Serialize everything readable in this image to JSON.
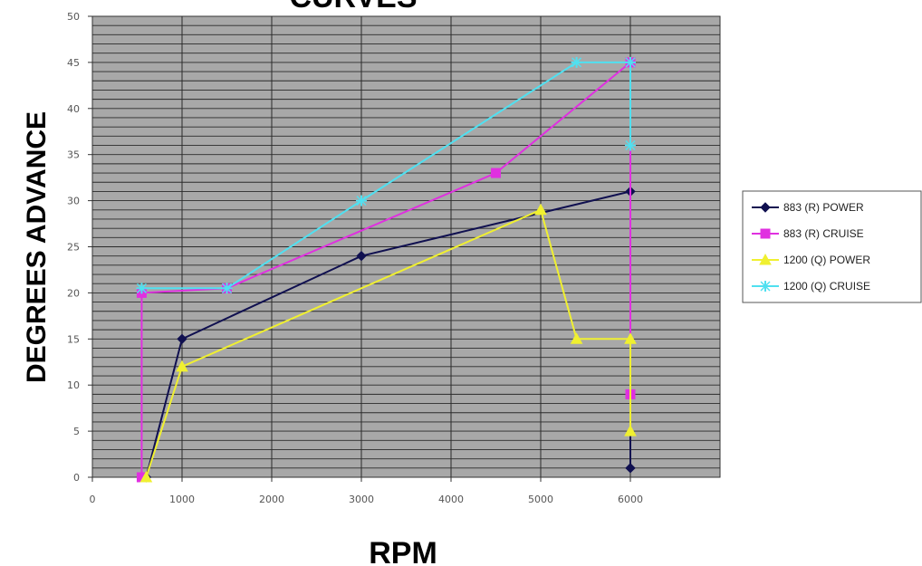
{
  "chart_data": {
    "type": "line",
    "title": "CURVES",
    "xlabel": "RPM",
    "ylabel": "DEGREES ADVANCE",
    "xlim": [
      0,
      7000
    ],
    "ylim": [
      0,
      50
    ],
    "xticks": [
      0,
      1000,
      2000,
      3000,
      4000,
      5000,
      6000
    ],
    "yticks": [
      0,
      5,
      10,
      15,
      20,
      25,
      30,
      35,
      40,
      45,
      50
    ],
    "grid": true,
    "legend": "right",
    "plot_background": "#a8a8a8",
    "series": [
      {
        "name": "883 (R) POWER",
        "color": "#101050",
        "marker": "diamond",
        "points": [
          [
            600,
            0
          ],
          [
            1000,
            15
          ],
          [
            3000,
            24
          ],
          [
            6000,
            31
          ],
          [
            6000,
            1
          ]
        ]
      },
      {
        "name": "883 (R) CRUISE",
        "color": "#e030e0",
        "marker": "square",
        "points": [
          [
            550,
            0
          ],
          [
            550,
            20
          ],
          [
            1500,
            20.5
          ],
          [
            4500,
            33
          ],
          [
            6000,
            45
          ],
          [
            6000,
            9
          ]
        ]
      },
      {
        "name": "1200 (Q) POWER",
        "color": "#f0f030",
        "marker": "triangle",
        "points": [
          [
            600,
            0
          ],
          [
            1000,
            12
          ],
          [
            5000,
            29
          ],
          [
            5400,
            15
          ],
          [
            6000,
            15
          ],
          [
            6000,
            5
          ]
        ]
      },
      {
        "name": "1200 (Q) CRUISE",
        "color": "#50e0f0",
        "marker": "star",
        "points": [
          [
            550,
            20.5
          ],
          [
            1500,
            20.5
          ],
          [
            3000,
            30
          ],
          [
            5400,
            45
          ],
          [
            6000,
            45
          ],
          [
            6000,
            36
          ]
        ]
      }
    ]
  }
}
